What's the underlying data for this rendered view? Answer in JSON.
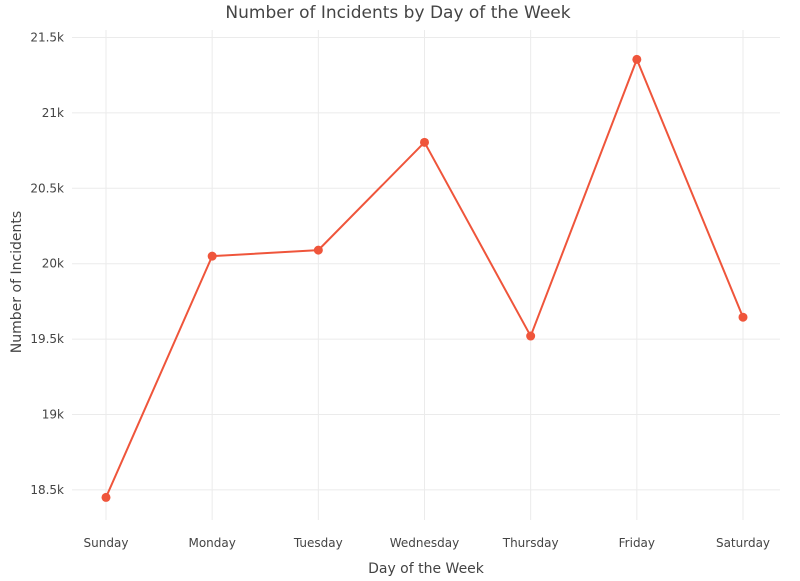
{
  "chart_data": {
    "type": "line",
    "title": "Number of Incidents by Day of the Week",
    "xlabel": "Day of the Week",
    "ylabel": "Number of Incidents",
    "categories": [
      "Sunday",
      "Monday",
      "Tuesday",
      "Wednesday",
      "Thursday",
      "Friday",
      "Saturday"
    ],
    "series": [
      {
        "values": [
          18450,
          20050,
          20090,
          20805,
          19520,
          21355,
          19645
        ]
      }
    ],
    "ylim": [
      18300,
      21550
    ],
    "yticks": [
      18500,
      19000,
      19500,
      20000,
      20500,
      21000,
      21500
    ],
    "ytick_labels": [
      "18.5k",
      "19k",
      "19.5k",
      "20k",
      "20.5k",
      "21k",
      "21.5k"
    ],
    "grid": true,
    "legend": "none",
    "colors": {
      "series": "#ef553b",
      "grid": "#ebebeb",
      "text": "#444444",
      "background": "#ffffff"
    }
  }
}
